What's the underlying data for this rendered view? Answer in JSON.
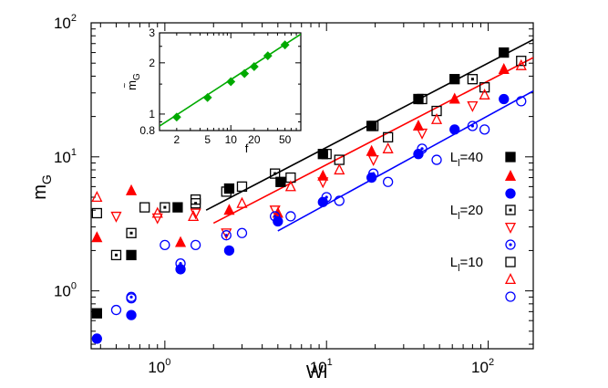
{
  "chart_data": {
    "type": "scatter",
    "xlabel": "Wi",
    "ylabel": "m",
    "ylabel_sub": "G",
    "xscale": "log",
    "yscale": "log",
    "xlim": [
      0.35,
      190
    ],
    "ylim": [
      0.37,
      100
    ],
    "x_ticks": [
      {
        "base": "10",
        "exp": "0",
        "value": 1
      },
      {
        "base": "10",
        "exp": "1",
        "value": 10
      },
      {
        "base": "10",
        "exp": "2",
        "value": 100
      }
    ],
    "y_ticks": [
      {
        "base": "10",
        "exp": "0",
        "value": 1
      },
      {
        "base": "10",
        "exp": "1",
        "value": 10
      },
      {
        "base": "10",
        "exp": "2",
        "value": 100
      }
    ],
    "legend": [
      {
        "label_main": "L",
        "label_sub": "l",
        "label_rest": "=40",
        "color": "#000000",
        "series": [
          "L40_filled_square",
          "L40_open_square"
        ]
      },
      {
        "label_main": "L",
        "label_sub": "l",
        "label_rest": "=20",
        "color": "#000000",
        "series": [
          "L20_filled_triangle",
          "L20_open_triangle"
        ]
      },
      {
        "label_main": "L",
        "label_sub": "l",
        "label_rest": "=10",
        "color": "#000000",
        "series": [
          "L10_filled_circle",
          "L10_open_circle"
        ]
      }
    ],
    "legend_markers": [
      {
        "marker": "square",
        "fill": true,
        "color": "#000000"
      },
      {
        "marker": "triangle",
        "fill": true,
        "color": "#ff0000"
      },
      {
        "marker": "circle",
        "fill": true,
        "color": "#0000ff"
      },
      {
        "marker": "square-dot",
        "fill": false,
        "color": "#000000"
      },
      {
        "marker": "triangle-down",
        "fill": false,
        "color": "#ff0000"
      },
      {
        "marker": "circle-dot",
        "fill": false,
        "color": "#0000ff"
      },
      {
        "marker": "square",
        "fill": false,
        "color": "#000000"
      },
      {
        "marker": "triangle",
        "fill": false,
        "color": "#ff0000"
      },
      {
        "marker": "circle",
        "fill": false,
        "color": "#0000ff"
      }
    ],
    "series": [
      {
        "name": "filled squares",
        "marker": "square",
        "fill": true,
        "color": "#000000",
        "x": [
          0.38,
          0.62,
          1.2,
          2.5,
          5.2,
          9.5,
          19,
          37,
          62,
          125
        ],
        "y": [
          0.68,
          1.85,
          4.2,
          5.8,
          6.5,
          10.5,
          17,
          27,
          38,
          60
        ]
      },
      {
        "name": "filled triangles",
        "marker": "triangle",
        "fill": true,
        "color": "#ff0000",
        "x": [
          0.38,
          0.62,
          1.25,
          2.5,
          5.0,
          9.5,
          19,
          37,
          62,
          125
        ],
        "y": [
          2.5,
          5.6,
          2.3,
          4.0,
          3.8,
          7.2,
          11,
          17,
          27,
          45
        ]
      },
      {
        "name": "filled circles",
        "marker": "circle",
        "fill": true,
        "color": "#0000ff",
        "x": [
          0.38,
          0.62,
          1.25,
          2.5,
          5.0,
          9.5,
          19,
          37,
          62,
          125
        ],
        "y": [
          0.44,
          0.66,
          1.45,
          2.0,
          3.3,
          4.6,
          7.0,
          10.5,
          16,
          27
        ]
      },
      {
        "name": "open squares",
        "marker": "square",
        "fill": false,
        "color": "#000000",
        "x": [
          0.38,
          0.75,
          1.55,
          3.0,
          6.0,
          12,
          24,
          48,
          95,
          160
        ],
        "y": [
          3.8,
          4.2,
          4.8,
          6.0,
          7.0,
          9.5,
          14,
          22,
          33,
          52
        ]
      },
      {
        "name": "open squares dotted",
        "marker": "square-dot",
        "fill": false,
        "color": "#000000",
        "x": [
          0.5,
          0.62,
          1.0,
          1.55,
          2.4,
          4.8,
          10,
          19.5,
          39,
          80
        ],
        "y": [
          1.85,
          2.7,
          4.2,
          4.5,
          5.5,
          7.5,
          10.5,
          17,
          27,
          38
        ]
      },
      {
        "name": "open triangles",
        "marker": "triangle",
        "fill": false,
        "color": "#ff0000",
        "x": [
          0.38,
          0.9,
          1.5,
          3.0,
          6.0,
          12,
          24,
          48,
          95,
          160
        ],
        "y": [
          5.0,
          3.8,
          3.6,
          4.5,
          6.0,
          8.0,
          11.5,
          19,
          29,
          48
        ]
      },
      {
        "name": "open triangles down",
        "marker": "triangle-down",
        "fill": false,
        "color": "#ff0000",
        "x": [
          0.5,
          0.9,
          1.55,
          2.4,
          4.8,
          9.5,
          19.5,
          39,
          80
        ],
        "y": [
          3.6,
          3.5,
          3.8,
          2.7,
          4.0,
          6.5,
          9.5,
          15,
          24
        ]
      },
      {
        "name": "open circles",
        "marker": "circle",
        "fill": false,
        "color": "#0000ff",
        "x": [
          0.5,
          0.62,
          1.0,
          1.55,
          3.0,
          6.0,
          12,
          24,
          48,
          95,
          160
        ],
        "y": [
          0.72,
          0.88,
          2.2,
          2.2,
          2.7,
          3.6,
          4.7,
          6.5,
          9.5,
          16,
          26
        ]
      },
      {
        "name": "open circles dotted",
        "marker": "circle-dot",
        "fill": false,
        "color": "#0000ff",
        "x": [
          0.62,
          1.25,
          2.4,
          4.8,
          10,
          19.5,
          39,
          80
        ],
        "y": [
          0.9,
          1.6,
          2.6,
          3.6,
          5.0,
          7.5,
          11.5,
          17
        ]
      }
    ],
    "fit_lines": [
      {
        "color": "#000000",
        "x": [
          1.8,
          190
        ],
        "y": [
          4.0,
          75
        ]
      },
      {
        "color": "#ff0000",
        "x": [
          2.0,
          190
        ],
        "y": [
          3.2,
          55
        ]
      },
      {
        "color": "#0000ff",
        "x": [
          5.0,
          190
        ],
        "y": [
          2.8,
          31
        ]
      }
    ],
    "inset": {
      "xlabel": "f",
      "ylabel": "m",
      "ylabel_tilde": "~",
      "ylabel_sub": "G",
      "xscale": "log",
      "yscale": "log",
      "xlim": [
        1.2,
        80
      ],
      "ylim": [
        0.8,
        3
      ],
      "x_ticks": [
        {
          "label": "2",
          "value": 2
        },
        {
          "label": "5",
          "value": 5
        },
        {
          "label": "10",
          "value": 10
        },
        {
          "label": "20",
          "value": 20
        },
        {
          "label": "50",
          "value": 50
        }
      ],
      "y_ticks": [
        {
          "label": "0.8",
          "value": 0.8
        },
        {
          "label": "1",
          "value": 1
        },
        {
          "label": "2",
          "value": 2
        },
        {
          "label": "3",
          "value": 3
        }
      ],
      "points": {
        "marker": "diamond",
        "color": "#00aa00",
        "x": [
          2,
          5,
          10,
          15,
          20,
          30,
          50
        ],
        "y": [
          0.96,
          1.25,
          1.55,
          1.73,
          1.9,
          2.2,
          2.55
        ]
      },
      "fit_line": {
        "color": "#00aa00",
        "x": [
          1.2,
          80
        ],
        "y": [
          0.85,
          2.95
        ]
      }
    }
  }
}
